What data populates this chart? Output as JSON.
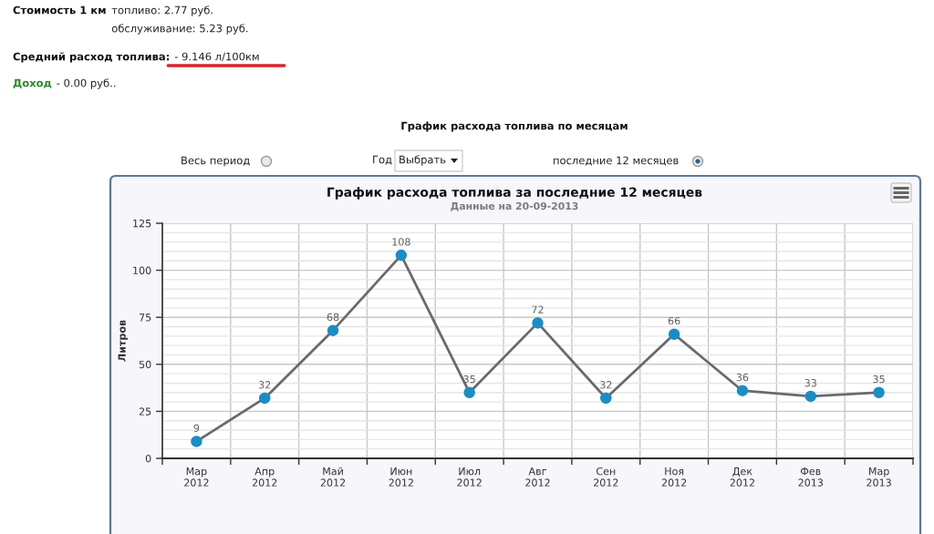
{
  "chart_data": {
    "type": "line",
    "title": "График расхода топлива за последние 12 месяцев",
    "subtitle": "Данные на 20-09-2013",
    "ylabel": "Литров",
    "categories": [
      "Мар\n2012",
      "Апр\n2012",
      "Май\n2012",
      "Июн\n2012",
      "Июл\n2012",
      "Авг\n2012",
      "Сен\n2012",
      "Ноя\n2012",
      "Дек\n2012",
      "Фев\n2013",
      "Мар\n2013"
    ],
    "series": [
      {
        "color": "#6a6a6a",
        "colors": [
          "#1b8dc6",
          "#1b8dc6",
          "#1b8dc6",
          "#1b8dc6",
          "#1b8dc6",
          "#1b8dc6",
          "#1b8dc6",
          "#1b8dc6",
          "#1b8dc6",
          "#1b8dc6",
          "#1b8dc6"
        ],
        "values": [
          9,
          32,
          68,
          108,
          35,
          72,
          32,
          66,
          36,
          33,
          35
        ]
      }
    ],
    "ylim": [
      0,
      125
    ],
    "yticks": [
      0,
      25,
      50,
      75,
      100,
      125
    ],
    "grid": true,
    "marker": "circle",
    "line_style": "solid",
    "data_labels": true,
    "annotations": [
      "Стоимость 1 км",
      "топливо: 2.77 руб.",
      "обслуживание: 5.23 руб.",
      "Средний расход топлива:",
      "- 9.146 л/100км",
      "Доход",
      "- 0.00 руб..",
      "График расхода топлива по месяцам",
      "Весь период",
      "Год",
      "Выбрать",
      "последние 12 месяцев"
    ]
  }
}
